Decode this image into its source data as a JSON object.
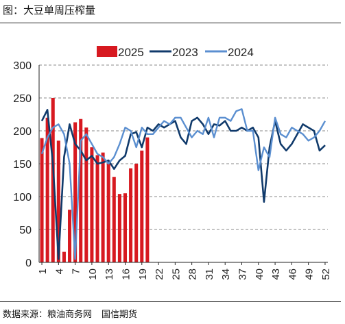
{
  "figure_title": "图：大豆单周压榨量",
  "source": {
    "text": "数据来源：粮油商务网",
    "credit": "国信期货"
  },
  "colors": {
    "bar_2025": "#d71920",
    "line_2023": "#103a6b",
    "line_2024": "#5b8fd0",
    "grid": "#888888",
    "axis": "#222222"
  },
  "chart_data": {
    "type": "bar+line",
    "title": "",
    "xlabel": "",
    "ylabel": "",
    "ylim": [
      0,
      300
    ],
    "y_ticks": [
      0,
      50,
      100,
      150,
      200,
      250,
      300
    ],
    "x_ticks": [
      1,
      4,
      7,
      10,
      13,
      16,
      19,
      22,
      25,
      28,
      31,
      34,
      37,
      40,
      43,
      46,
      49,
      52
    ],
    "weeks": [
      1,
      52
    ],
    "grid": "horizontal dashed",
    "legend_position": "top",
    "series": [
      {
        "name": "2025",
        "kind": "bar",
        "color_key": "bar_2025",
        "values": [
          189,
          220,
          250,
          185,
          16,
          80,
          213,
          218,
          205,
          175,
          163,
          167,
          150,
          130,
          104,
          105,
          143,
          150,
          170,
          190
        ]
      },
      {
        "name": "2023",
        "kind": "line",
        "color_key": "line_2023",
        "values": [
          215,
          232,
          150,
          5,
          160,
          210,
          180,
          170,
          155,
          162,
          150,
          152,
          155,
          142,
          155,
          162,
          195,
          198,
          175,
          205,
          200,
          210,
          205,
          210,
          215,
          190,
          180,
          215,
          220,
          210,
          195,
          210,
          208,
          215,
          200,
          200,
          205,
          200,
          205,
          190,
          92,
          175,
          215,
          180,
          170,
          180,
          195,
          210,
          205,
          200,
          170,
          178
        ]
      },
      {
        "name": "2024",
        "kind": "line",
        "color_key": "line_2024",
        "values": [
          165,
          190,
          205,
          210,
          195,
          150,
          5,
          185,
          195,
          180,
          165,
          160,
          150,
          160,
          180,
          205,
          200,
          175,
          205,
          195,
          195,
          205,
          215,
          210,
          220,
          220,
          205,
          190,
          200,
          195,
          220,
          190,
          220,
          220,
          215,
          230,
          233,
          200,
          200,
          140,
          175,
          160,
          220,
          195,
          190,
          205,
          200,
          195,
          185,
          190,
          200,
          215
        ]
      }
    ]
  }
}
